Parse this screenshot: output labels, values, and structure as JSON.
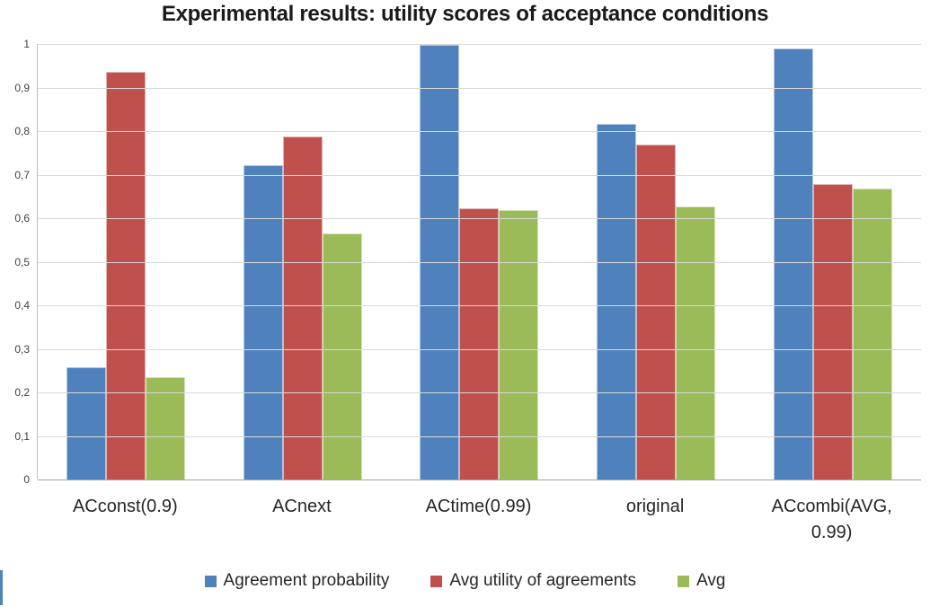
{
  "chart_data": {
    "type": "bar",
    "title": "Experimental results: utility scores of acceptance conditions",
    "categories": [
      "ACconst(0.9)",
      "ACnext",
      "ACtime(0.99)",
      "original",
      "ACcombi(AVG, 0.99)"
    ],
    "series": [
      {
        "name": "Agreement probability",
        "color": "#4F81BD",
        "values": [
          0.257,
          0.722,
          0.997,
          0.816,
          0.99
        ]
      },
      {
        "name": "Avg utility of agreements",
        "color": "#C0504D",
        "values": [
          0.937,
          0.788,
          0.623,
          0.77,
          0.679
        ]
      },
      {
        "name": "Avg",
        "color": "#9BBB59",
        "values": [
          0.236,
          0.566,
          0.619,
          0.627,
          0.669
        ]
      }
    ],
    "xlabel": "",
    "ylabel": "",
    "ylim": [
      0,
      1
    ],
    "yticks": [
      {
        "value": 0,
        "label": "0"
      },
      {
        "value": 0.1,
        "label": "0,1"
      },
      {
        "value": 0.2,
        "label": "0,2"
      },
      {
        "value": 0.3,
        "label": "0,3"
      },
      {
        "value": 0.4,
        "label": "0,4"
      },
      {
        "value": 0.5,
        "label": "0,5"
      },
      {
        "value": 0.6,
        "label": "0,6"
      },
      {
        "value": 0.7,
        "label": "0,7"
      },
      {
        "value": 0.8,
        "label": "0,8"
      },
      {
        "value": 0.9,
        "label": "0,9"
      },
      {
        "value": 1,
        "label": "1"
      }
    ],
    "grid": "horizontal",
    "legend_position": "bottom"
  },
  "colors": {
    "gridline": "#D9D9D9",
    "baseline": "#A6A6A6",
    "axis_line": "#BFBFBF",
    "title_text": "#1A1A1A",
    "tick_text": "#404040",
    "category_text": "#262626",
    "edge_sliver": "#4F81BD"
  }
}
